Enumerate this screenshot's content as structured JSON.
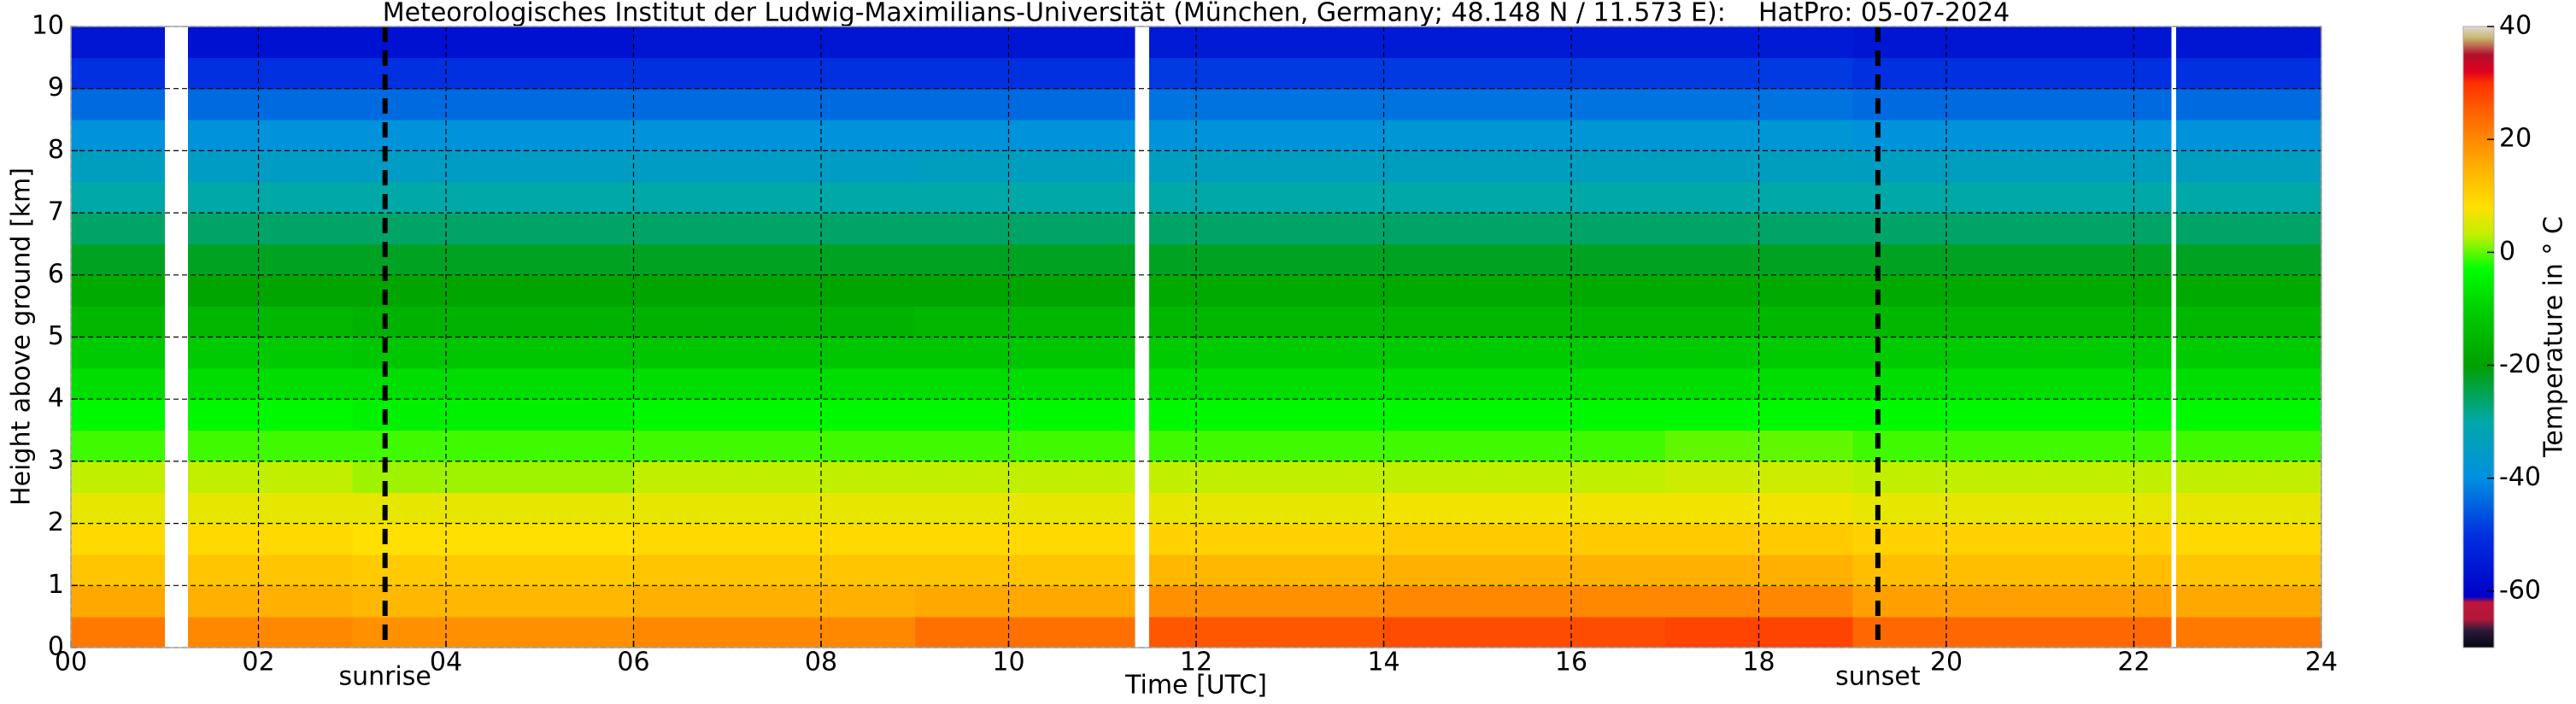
{
  "chart_data": {
    "type": "heatmap",
    "title": "Meteorologisches Institut der Ludwig-Maximilians-Universität (München, Germany; 48.148 N / 11.573 E):    HatPro: 05-07-2024",
    "xlabel": "Time [UTC]",
    "ylabel": "Height above ground [km]",
    "colorbar_label": "Temperature in ° C",
    "xlim": [
      0,
      24
    ],
    "xticks": [
      {
        "value": 0,
        "label": "00"
      },
      {
        "value": 2,
        "label": "02"
      },
      {
        "value": 4,
        "label": "04"
      },
      {
        "value": 6,
        "label": "06"
      },
      {
        "value": 8,
        "label": "08"
      },
      {
        "value": 10,
        "label": "10"
      },
      {
        "value": 12,
        "label": "12"
      },
      {
        "value": 14,
        "label": "14"
      },
      {
        "value": 16,
        "label": "16"
      },
      {
        "value": 18,
        "label": "18"
      },
      {
        "value": 20,
        "label": "20"
      },
      {
        "value": 22,
        "label": "22"
      },
      {
        "value": 24,
        "label": "24"
      }
    ],
    "ylim": [
      0,
      10
    ],
    "yticks": [
      0,
      1,
      2,
      3,
      4,
      5,
      6,
      7,
      8,
      9,
      10
    ],
    "grid": true,
    "clim": [
      -70,
      40
    ],
    "cticks": [
      -60,
      -40,
      -20,
      0,
      20,
      40
    ],
    "colorscale": [
      [
        -70,
        "#050510"
      ],
      [
        -67,
        "#2a1a3a"
      ],
      [
        -65,
        "#b0183a"
      ],
      [
        -62,
        "#c0143c"
      ],
      [
        -61,
        "#0000c8"
      ],
      [
        -50,
        "#0030e0"
      ],
      [
        -40,
        "#0090e0"
      ],
      [
        -30,
        "#00a8a8"
      ],
      [
        -20,
        "#00a000"
      ],
      [
        -10,
        "#00d000"
      ],
      [
        -3,
        "#00ff00"
      ],
      [
        3,
        "#c0f000"
      ],
      [
        8,
        "#ffe000"
      ],
      [
        15,
        "#ffb000"
      ],
      [
        25,
        "#ff6000"
      ],
      [
        30,
        "#ff3000"
      ],
      [
        32,
        "#e00020"
      ],
      [
        35,
        "#b0102c"
      ],
      [
        38,
        "#c8b870"
      ],
      [
        40,
        "#e0d8d8"
      ]
    ],
    "markers": [
      {
        "label": "sunrise",
        "x": 3.35
      },
      {
        "label": "sunset",
        "x": 19.27
      }
    ],
    "xbins": [
      0,
      1,
      1.25,
      3,
      6,
      9,
      11.35,
      11.5,
      14,
      17,
      19,
      22.4,
      22.45,
      24
    ],
    "ybins": [
      0,
      0.5,
      1,
      1.5,
      2,
      2.5,
      3,
      3.5,
      4,
      4.5,
      5,
      5.5,
      6,
      6.5,
      7,
      7.5,
      8,
      8.5,
      9,
      9.5,
      10
    ],
    "z": [
      [
        22,
        null,
        20,
        19,
        20,
        23,
        null,
        26,
        27,
        28,
        24,
        null,
        22
      ],
      [
        16,
        null,
        15,
        14,
        15,
        16,
        null,
        19,
        20,
        20,
        17,
        null,
        16
      ],
      [
        12,
        null,
        12,
        11,
        12,
        12,
        null,
        14,
        15,
        15,
        13,
        null,
        12
      ],
      [
        9,
        null,
        9,
        8,
        9,
        9,
        null,
        10,
        11,
        11,
        10,
        null,
        9
      ],
      [
        6,
        null,
        6,
        6,
        6,
        6,
        null,
        6,
        7,
        7,
        6,
        null,
        6
      ],
      [
        3,
        null,
        3,
        2,
        3,
        3,
        null,
        3,
        3,
        4,
        3,
        null,
        3
      ],
      [
        -1,
        null,
        -1,
        -1,
        -1,
        -1,
        null,
        -1,
        -1,
        0,
        -1,
        null,
        -1
      ],
      [
        -4,
        null,
        -4,
        -5,
        -4,
        -4,
        null,
        -4,
        -4,
        -4,
        -4,
        null,
        -4
      ],
      [
        -8,
        null,
        -8,
        -8,
        -8,
        -8,
        null,
        -8,
        -8,
        -8,
        -8,
        null,
        -8
      ],
      [
        -11,
        null,
        -11,
        -12,
        -12,
        -12,
        null,
        -11,
        -11,
        -11,
        -11,
        null,
        -11
      ],
      [
        -15,
        null,
        -15,
        -16,
        -16,
        -15,
        null,
        -15,
        -15,
        -15,
        -15,
        null,
        -15
      ],
      [
        -18,
        null,
        -19,
        -19,
        -19,
        -19,
        null,
        -18,
        -18,
        -18,
        -18,
        null,
        -18
      ],
      [
        -22,
        null,
        -22,
        -22,
        -22,
        -22,
        null,
        -22,
        -22,
        -22,
        -22,
        null,
        -22
      ],
      [
        -26,
        null,
        -26,
        -26,
        -26,
        -26,
        null,
        -26,
        -26,
        -26,
        -26,
        null,
        -26
      ],
      [
        -30,
        null,
        -30,
        -30,
        -30,
        -30,
        null,
        -30,
        -30,
        -30,
        -30,
        null,
        -30
      ],
      [
        -34,
        null,
        -35,
        -35,
        -35,
        -34,
        null,
        -34,
        -34,
        -34,
        -34,
        null,
        -34
      ],
      [
        -39,
        null,
        -39,
        -39,
        -39,
        -39,
        null,
        -39,
        -38,
        -38,
        -39,
        null,
        -39
      ],
      [
        -44,
        null,
        -44,
        -44,
        -44,
        -44,
        null,
        -43,
        -43,
        -43,
        -44,
        null,
        -44
      ],
      [
        -50,
        null,
        -50,
        -50,
        -50,
        -50,
        null,
        -49,
        -49,
        -49,
        -50,
        null,
        -50
      ],
      [
        -56,
        null,
        -57,
        -57,
        -56,
        -56,
        null,
        -55,
        -55,
        -55,
        -56,
        null,
        -56
      ]
    ]
  }
}
